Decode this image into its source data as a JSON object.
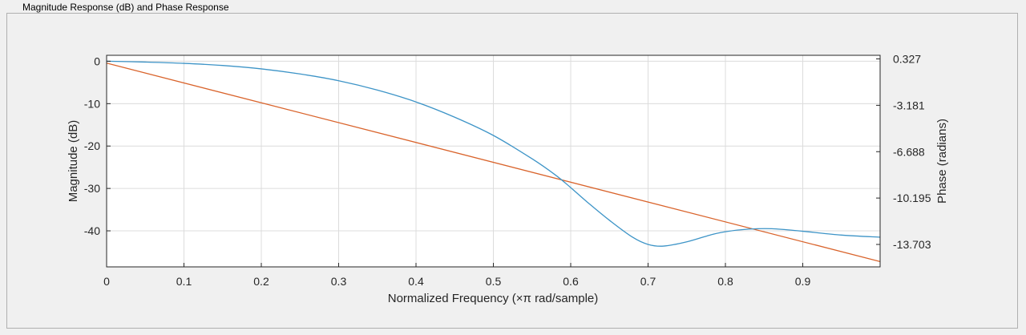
{
  "panel": {
    "title": "Magnitude Response (dB) and Phase Response"
  },
  "colors": {
    "magnitude": "#3d94c7",
    "phase": "#d9632b",
    "grid": "#dcdcdc",
    "axis": "#262626"
  },
  "chart_data": {
    "type": "line",
    "title": "",
    "xlabel": "Normalized Frequency (×π rad/sample)",
    "ylabel": "Magnitude (dB)",
    "ylabel_right": "Phase (radians)",
    "xlim": [
      0,
      1
    ],
    "ylim": [
      -48.5,
      1.4
    ],
    "ylim_right": [
      -15.4,
      0.6
    ],
    "x_ticks": [
      0,
      0.1,
      0.2,
      0.3,
      0.4,
      0.5,
      0.6,
      0.7,
      0.8,
      0.9
    ],
    "x_tick_labels": [
      "0",
      "0.1",
      "0.2",
      "0.3",
      "0.4",
      "0.5",
      "0.6",
      "0.7",
      "0.8",
      "0.9"
    ],
    "y_ticks": [
      0,
      -10,
      -20,
      -30,
      -40
    ],
    "y_tick_labels": [
      "0",
      "-10",
      "-20",
      "-30",
      "-40"
    ],
    "y_ticks_right": [
      0.327,
      -3.181,
      -6.688,
      -10.195,
      -13.703
    ],
    "y_tick_labels_right": [
      "0.327",
      "-3.181",
      "-6.688",
      "-10.195",
      "-13.703"
    ],
    "grid": true,
    "series": [
      {
        "axis": "left",
        "x": [
          0,
          0.05,
          0.1,
          0.15,
          0.2,
          0.25,
          0.3,
          0.35,
          0.4,
          0.45,
          0.5,
          0.55,
          0.58,
          0.6,
          0.62,
          0.65,
          0.68,
          0.7,
          0.72,
          0.75,
          0.78,
          0.8,
          0.83,
          0.86,
          0.9,
          0.95,
          1.0
        ],
        "values": [
          0,
          -0.2,
          -0.5,
          -1.0,
          -1.8,
          -3.0,
          -4.6,
          -6.8,
          -9.6,
          -13.2,
          -17.5,
          -23.0,
          -26.8,
          -29.8,
          -33.0,
          -37.5,
          -41.5,
          -43.2,
          -43.6,
          -42.6,
          -41.0,
          -40.2,
          -39.6,
          -39.5,
          -40.1,
          -41.0,
          -41.5
        ]
      },
      {
        "axis": "right",
        "x": [
          0,
          1.0
        ],
        "values": [
          0.01,
          -15.0
        ]
      }
    ]
  }
}
